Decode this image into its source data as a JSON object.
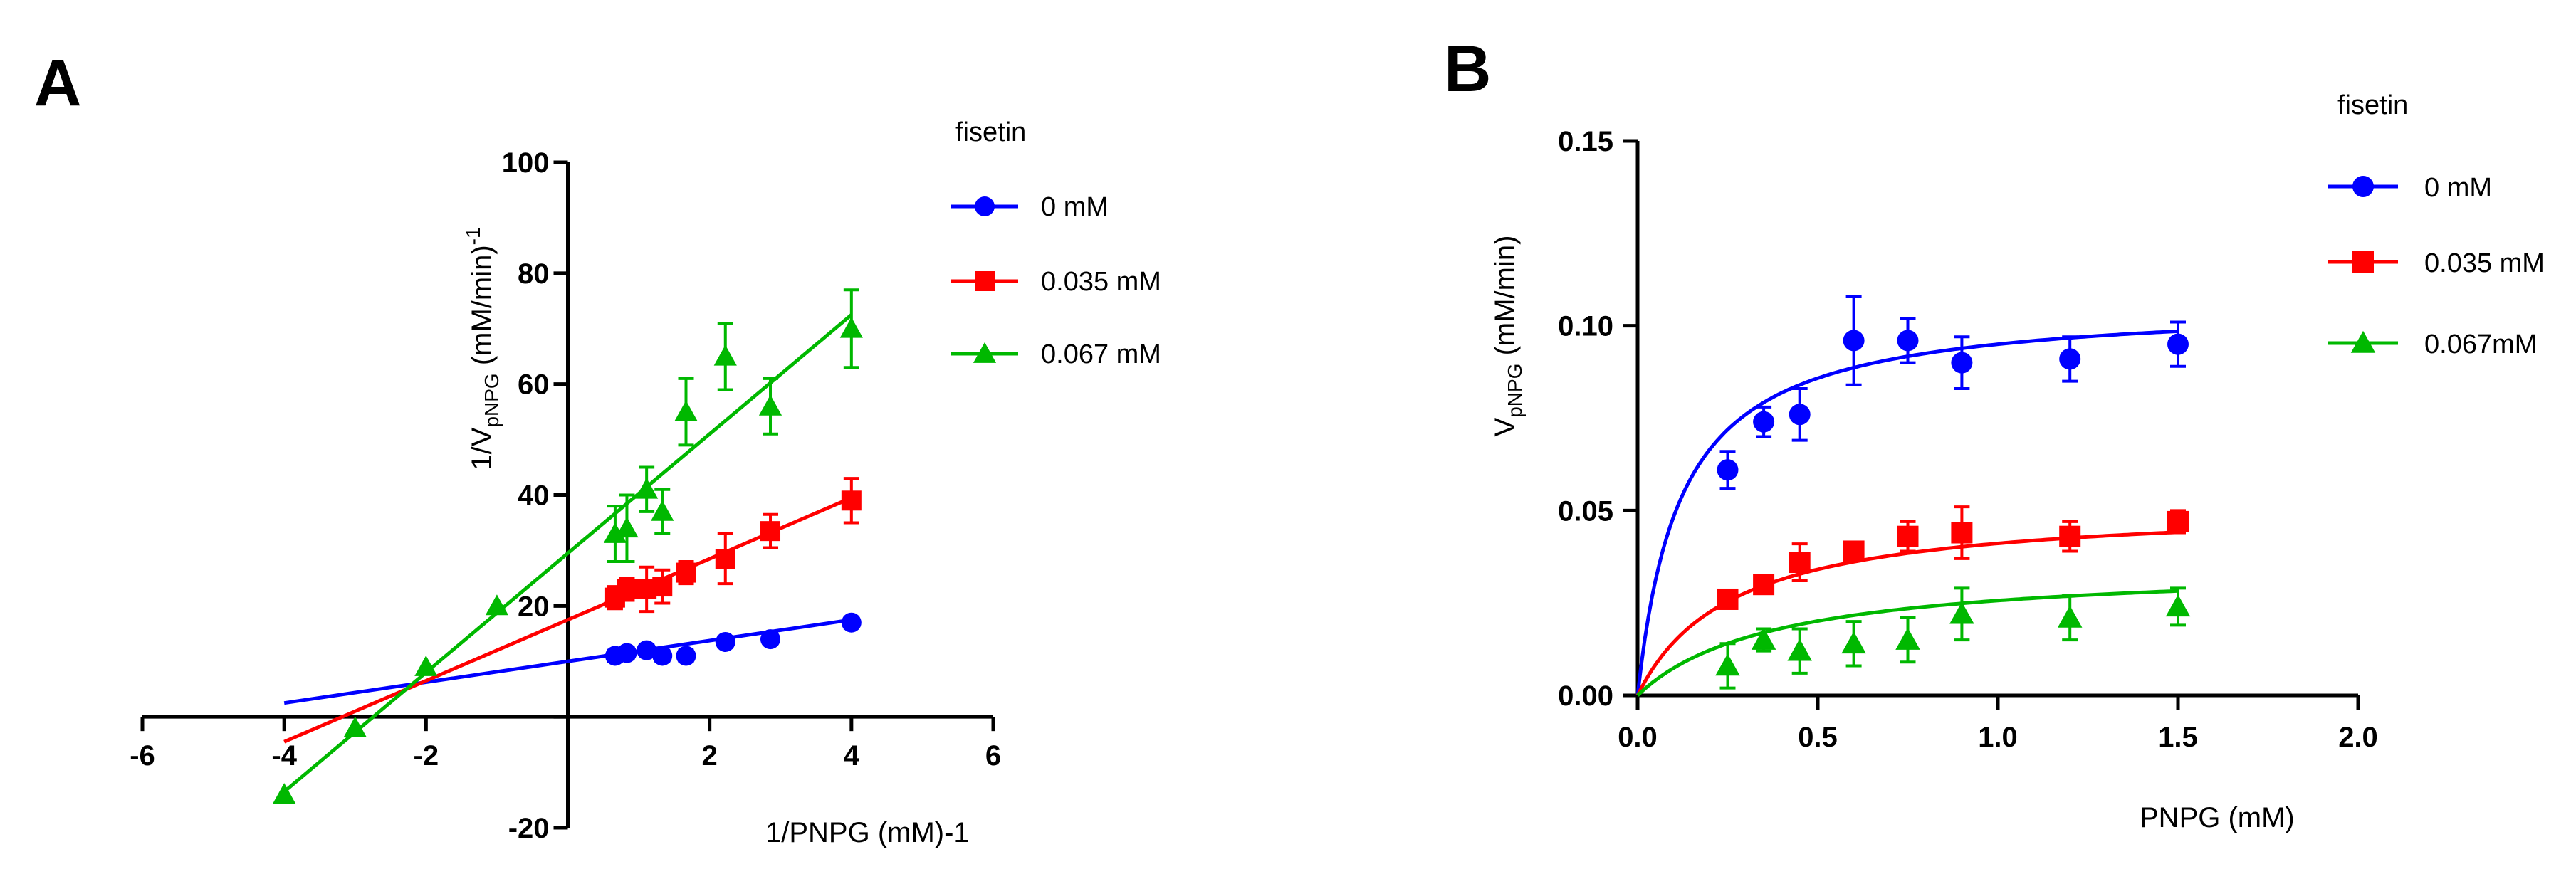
{
  "figure": {
    "panel_a_letter": "A",
    "panel_b_letter": "B"
  },
  "chart_data": [
    {
      "panel": "A",
      "type": "line",
      "subtype": "lineweaver-burk",
      "xlabel": "1/PNPG (mM)-1",
      "ylabel_parts": {
        "main": "1/V",
        "sub": "pNPG",
        "tail": " (mM/min)",
        "sup": "-1"
      },
      "xlim": [
        -6,
        6
      ],
      "ylim": [
        -20,
        100
      ],
      "xticks": [
        -6,
        -4,
        -2,
        0,
        2,
        4,
        6
      ],
      "xtick_labels": [
        "-6",
        "-4",
        "-2",
        "",
        "2",
        "4",
        "6"
      ],
      "yticks": [
        -20,
        0,
        20,
        40,
        60,
        80,
        100
      ],
      "ytick_labels": [
        "-20",
        "",
        "20",
        "40",
        "60",
        "80",
        "100"
      ],
      "legend_title": "fisetin",
      "legend_position": "right",
      "series": [
        {
          "name": "0 mM",
          "color": "#0000ff",
          "marker": "circle",
          "x": [
            0.667,
            0.833,
            1.111,
            1.333,
            1.667,
            2.222,
            2.857,
            4.0
          ],
          "y": [
            11.0,
            11.5,
            12.0,
            11.0,
            11.0,
            13.5,
            14.0,
            17.0
          ],
          "err": [
            1,
            1,
            1,
            1,
            1,
            1,
            1,
            1
          ],
          "line_x": [
            -4,
            4
          ],
          "line_y": [
            2.5,
            17.5
          ]
        },
        {
          "name": "0.035 mM",
          "color": "#ff0000",
          "marker": "square",
          "x": [
            0.667,
            0.833,
            1.111,
            1.333,
            1.667,
            2.222,
            2.857,
            4.0
          ],
          "y": [
            21.5,
            23.0,
            23.0,
            23.5,
            26.0,
            28.5,
            33.5,
            39.0
          ],
          "err": [
            2,
            2,
            4,
            3,
            2,
            4.5,
            3,
            4
          ],
          "line_x": [
            -4,
            4
          ],
          "line_y": [
            -4.5,
            39.5
          ]
        },
        {
          "name": "0.067 mM",
          "color": "#00b800",
          "marker": "triangle",
          "x": [
            -4.0,
            -3.0,
            -2.0,
            -1.0,
            0.667,
            0.833,
            1.111,
            1.333,
            1.667,
            2.222,
            2.857,
            4.0
          ],
          "y": [
            -14.0,
            -2.0,
            9.0,
            20.0,
            33.0,
            34.0,
            41.0,
            37.0,
            55.0,
            65.0,
            56.0,
            70.0
          ],
          "err": [
            0,
            0,
            0,
            0,
            5,
            6,
            4,
            4,
            6,
            6,
            5,
            7
          ],
          "line_x": [
            -4,
            4
          ],
          "line_y": [
            -13.5,
            72.5
          ]
        }
      ]
    },
    {
      "panel": "B",
      "type": "scatter",
      "subtype": "michaelis-menten",
      "xlabel": "PNPG (mM)",
      "ylabel_parts": {
        "main": "V",
        "sub": "pNPG",
        "tail": " (mM/min)"
      },
      "xlim": [
        0,
        2.0
      ],
      "ylim": [
        0,
        0.15
      ],
      "xticks": [
        0,
        0.5,
        1.0,
        1.5,
        2.0
      ],
      "xtick_labels": [
        "0.0",
        "0.5",
        "1.0",
        "1.5",
        "2.0"
      ],
      "yticks": [
        0,
        0.05,
        0.1,
        0.15
      ],
      "ytick_labels": [
        "0.00",
        "0.05",
        "0.10",
        "0.15"
      ],
      "legend_title": "fisetin",
      "legend_position": "right",
      "series": [
        {
          "name": "0 mM",
          "color": "#0000ff",
          "marker": "circle",
          "x": [
            0.25,
            0.35,
            0.45,
            0.6,
            0.75,
            0.9,
            1.2,
            1.5
          ],
          "y": [
            0.061,
            0.074,
            0.076,
            0.096,
            0.096,
            0.09,
            0.091,
            0.095
          ],
          "err": [
            0.005,
            0.004,
            0.007,
            0.012,
            0.006,
            0.007,
            0.006,
            0.006
          ],
          "fit_vmax": 0.1064,
          "fit_km": 0.12
        },
        {
          "name": "0.035 mM",
          "color": "#ff0000",
          "marker": "square",
          "x": [
            0.25,
            0.35,
            0.45,
            0.6,
            0.75,
            0.9,
            1.2,
            1.5
          ],
          "y": [
            0.026,
            0.03,
            0.036,
            0.039,
            0.043,
            0.044,
            0.043,
            0.047
          ],
          "err": [
            0.002,
            0.002,
            0.005,
            0.002,
            0.004,
            0.007,
            0.004,
            0.003
          ],
          "fit_vmax": 0.0518,
          "fit_km": 0.26
        },
        {
          "name": "0.067mM",
          "color": "#00b800",
          "marker": "triangle",
          "x": [
            0.25,
            0.35,
            0.45,
            0.6,
            0.75,
            0.9,
            1.2,
            1.5
          ],
          "y": [
            0.008,
            0.015,
            0.012,
            0.014,
            0.015,
            0.022,
            0.021,
            0.024
          ],
          "err": [
            0.006,
            0.003,
            0.006,
            0.006,
            0.006,
            0.007,
            0.006,
            0.005
          ],
          "fit_vmax": 0.0354,
          "fit_km": 0.38
        }
      ]
    }
  ]
}
